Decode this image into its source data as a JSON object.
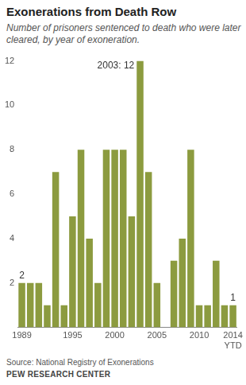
{
  "chart_data": {
    "type": "bar",
    "title": "Exonerations from Death Row",
    "subtitle": "Number of prisoners sentenced to death who were later cleared, by year of exoneration.",
    "source": "Source: National Registry of Exonerations",
    "credit": "PEW RESEARCH CENTER",
    "categories": [
      "1989",
      null,
      null,
      null,
      null,
      null,
      "1995",
      null,
      null,
      null,
      null,
      "2000",
      null,
      null,
      null,
      null,
      "2005",
      null,
      null,
      null,
      null,
      "2010",
      null,
      null,
      null,
      "2014 YTD"
    ],
    "values": [
      2,
      2,
      2,
      1,
      7,
      1,
      5,
      8,
      4,
      2,
      8,
      8,
      8,
      5,
      12,
      7,
      2,
      0,
      3,
      4,
      8,
      1,
      1,
      3,
      1,
      1
    ],
    "color": "#8c9b3f",
    "ylim": [
      0,
      12
    ],
    "yticks": [
      2,
      4,
      6,
      8,
      10,
      12
    ],
    "grid": false,
    "annotations": [
      {
        "text": "2003: 12",
        "bar": 14
      },
      {
        "text": "2",
        "bar": 0
      },
      {
        "text": "1",
        "bar": 25
      }
    ]
  }
}
